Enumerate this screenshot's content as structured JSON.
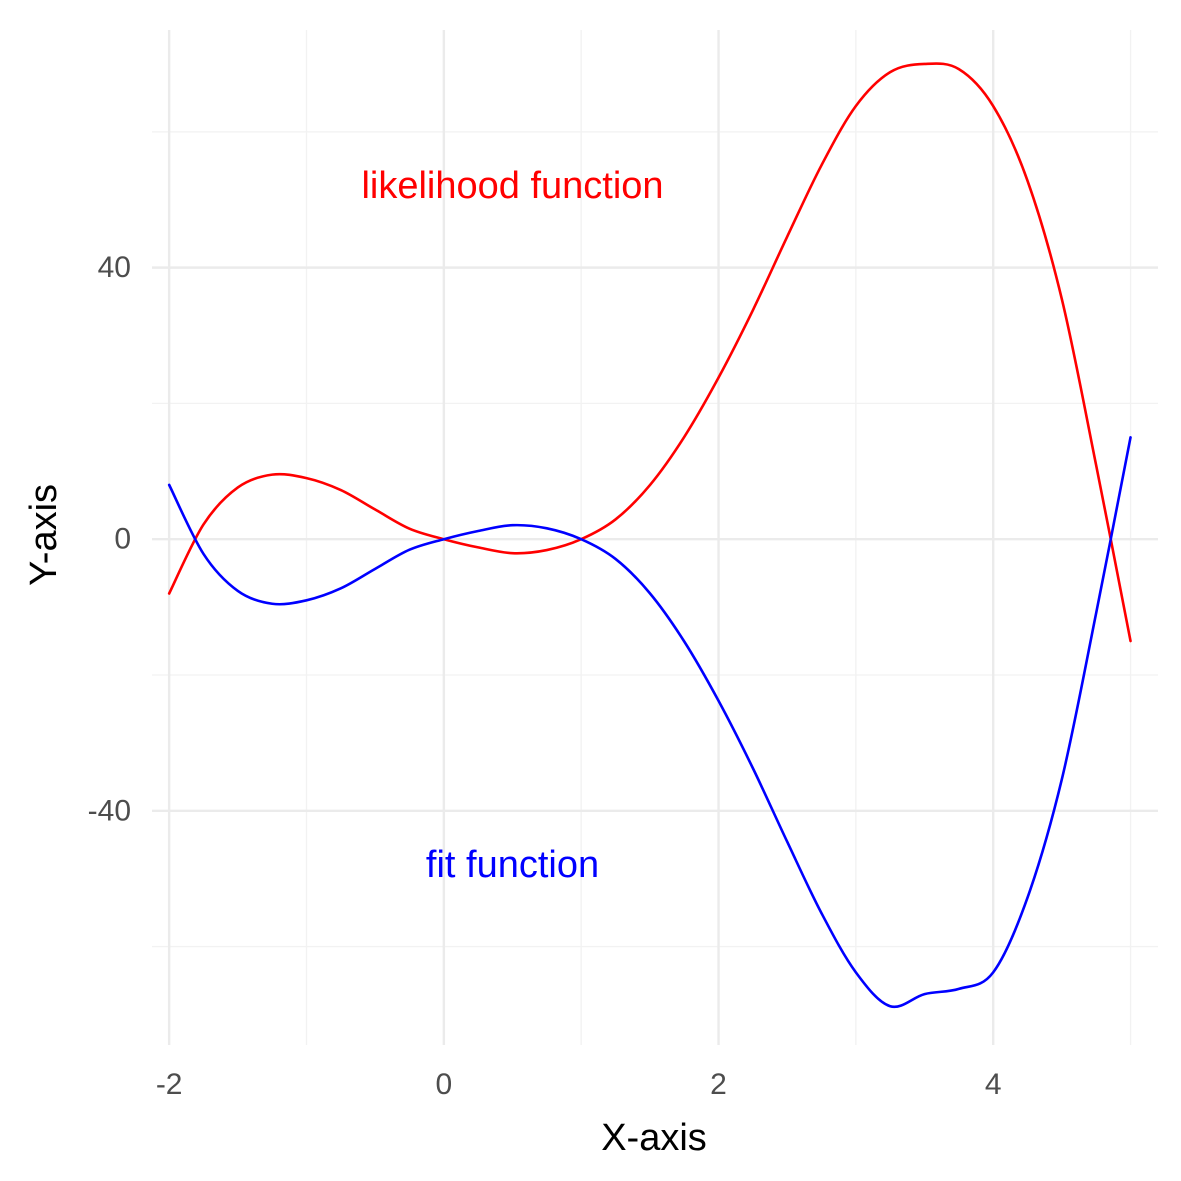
{
  "chart_data": {
    "type": "line",
    "xlabel": "X-axis",
    "ylabel": "Y-axis",
    "xlim": [
      -2.125,
      5.2
    ],
    "ylim": [
      -74.5,
      75
    ],
    "x_ticks": [
      -2,
      0,
      2,
      4
    ],
    "x_tick_labels": [
      "-2",
      "0",
      "2",
      "4"
    ],
    "x_minor_ticks": [
      -1,
      1,
      3,
      5
    ],
    "y_ticks": [
      -40,
      0,
      40
    ],
    "y_tick_labels": [
      "-40",
      "0",
      "40"
    ],
    "y_minor_ticks": [
      -60,
      -20,
      20,
      60
    ],
    "grid": true,
    "legend": "none",
    "series": [
      {
        "name": "likelihood function",
        "color": "#ff0000",
        "x": [
          -2,
          -1.75,
          -1.5,
          -1.25,
          -1,
          -0.75,
          -0.5,
          -0.25,
          0,
          0.25,
          0.5,
          0.75,
          1,
          1.25,
          1.5,
          1.75,
          2,
          2.25,
          2.5,
          2.75,
          3,
          3.25,
          3.5,
          3.75,
          4,
          4.25,
          4.5,
          4.75,
          5
        ],
        "values": [
          -8,
          2.17,
          7.62,
          9.51,
          9.0,
          7.24,
          4.37,
          1.55,
          0,
          -1.21,
          -2.06,
          -1.6,
          0,
          2.91,
          7.96,
          15.05,
          23.8,
          33.72,
          44.56,
          55.09,
          63.8,
          68.79,
          70.0,
          69.24,
          63.8,
          52.79,
          35.35,
          10.86,
          -15
        ]
      },
      {
        "name": "fit function",
        "color": "#0000ff",
        "x": [
          -2,
          -1.75,
          -1.5,
          -1.25,
          -1,
          -0.75,
          -0.5,
          -0.25,
          0,
          0.25,
          0.5,
          0.75,
          1,
          1.25,
          1.5,
          1.75,
          2,
          2.25,
          2.5,
          2.75,
          3,
          3.25,
          3.5,
          3.75,
          4,
          4.25,
          4.5,
          4.75,
          5
        ],
        "values": [
          8,
          -2.17,
          -7.62,
          -9.51,
          -9.0,
          -7.24,
          -4.37,
          -1.55,
          0,
          1.21,
          2.06,
          1.6,
          0,
          -2.91,
          -7.96,
          -15.05,
          -23.8,
          -33.72,
          -44.56,
          -55.09,
          -63.8,
          -68.79,
          -67.0,
          -66.24,
          -63.8,
          -52.79,
          -35.35,
          -10.86,
          15
        ]
      }
    ],
    "annotations": [
      {
        "text": "likelihood function",
        "x": 0.5,
        "y": 52,
        "color": "#ff0000"
      },
      {
        "text": "fit function",
        "x": 0.5,
        "y": -48,
        "color": "#0000ff"
      }
    ]
  }
}
